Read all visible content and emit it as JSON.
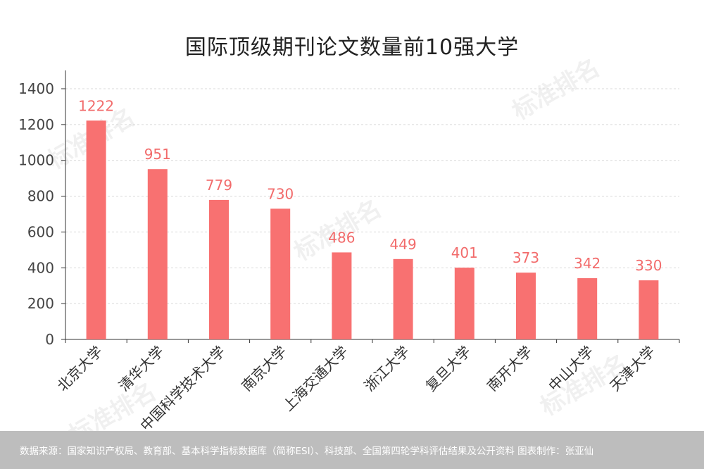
{
  "chart_data": {
    "type": "bar",
    "title": "国际顶级期刊论文数量前10强大学",
    "categories": [
      "北京大学",
      "清华大学",
      "中国科学技术大学",
      "南京大学",
      "上海交通大学",
      "浙江大学",
      "复旦大学",
      "南开大学",
      "中山大学",
      "天津大学"
    ],
    "values": [
      1222,
      951,
      779,
      730,
      486,
      449,
      401,
      373,
      342,
      330
    ],
    "ylim": [
      0,
      1400
    ],
    "yticks": [
      "0",
      "200",
      "400",
      "600",
      "800",
      "1000",
      "1200",
      "1400"
    ],
    "xlabel": "",
    "ylabel": "",
    "grid": true,
    "bar_color": "#f87171",
    "label_color": "#f26b6b"
  },
  "footer": {
    "text": "数据来源：国家知识产权局、教育部、基本科学指标数据库（简称ESI）、科技部、全国第四轮学科评估结果及公开资料  图表制作：张亚仙"
  },
  "watermark": {
    "text": "标准排名"
  }
}
